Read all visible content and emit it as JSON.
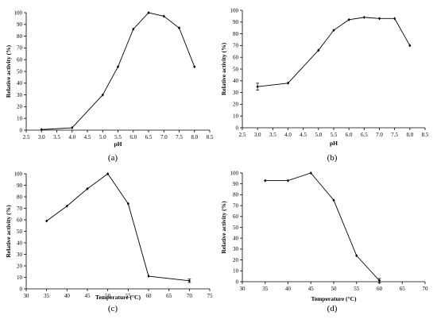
{
  "chart_data": [
    {
      "type": "line",
      "panel_label": "(a)",
      "xlabel": "pH",
      "ylabel": "Relative activity (%)",
      "xlim": [
        2.5,
        8.5
      ],
      "ylim": [
        0,
        100
      ],
      "xticks": [
        "2.5",
        "3.0",
        "3.5",
        "4.0",
        "4.5",
        "5.0",
        "5.5",
        "6.0",
        "6.5",
        "7.0",
        "7.5",
        "8.0",
        "8.5"
      ],
      "yticks": [
        "0",
        "10",
        "20",
        "30",
        "40",
        "50",
        "60",
        "70",
        "80",
        "90",
        "100"
      ],
      "series": [
        {
          "x": [
            3.0,
            4.0,
            5.0,
            5.5,
            6.0,
            6.5,
            7.0,
            7.5,
            8.0
          ],
          "y": [
            0.5,
            2,
            30,
            54,
            86,
            100,
            97,
            87,
            54
          ],
          "err": [
            0,
            0,
            0,
            0,
            0,
            0,
            0,
            0,
            0
          ]
        }
      ]
    },
    {
      "type": "line",
      "panel_label": "(b)",
      "xlabel": "pH",
      "ylabel": "Relative activity (%)",
      "xlim": [
        2.5,
        8.5
      ],
      "ylim": [
        0,
        100
      ],
      "xticks": [
        "2.5",
        "3.0",
        "3.5",
        "4.0",
        "4.5",
        "5.0",
        "5.5",
        "6.0",
        "6.5",
        "7.0",
        "7.5",
        "8.0",
        "8.5"
      ],
      "yticks": [
        "0",
        "10",
        "20",
        "30",
        "40",
        "50",
        "60",
        "70",
        "80",
        "90",
        "100"
      ],
      "series": [
        {
          "x": [
            3.0,
            4.0,
            5.0,
            5.5,
            6.0,
            6.5,
            7.0,
            7.5,
            8.0
          ],
          "y": [
            35,
            38,
            66,
            83,
            92,
            94,
            93,
            93,
            70
          ],
          "err": [
            3,
            0,
            0,
            0,
            0,
            0,
            0,
            0,
            0
          ]
        }
      ]
    },
    {
      "type": "line",
      "panel_label": "(c)",
      "xlabel": "Temperature (°C)",
      "ylabel": "Relative activity (%)",
      "xlim": [
        30,
        75
      ],
      "ylim": [
        0,
        100
      ],
      "xticks": [
        "30",
        "35",
        "40",
        "45",
        "50",
        "55",
        "60",
        "65",
        "70",
        "75"
      ],
      "yticks": [
        "0",
        "10",
        "20",
        "30",
        "40",
        "50",
        "60",
        "70",
        "80",
        "90",
        "100"
      ],
      "series": [
        {
          "x": [
            35,
            40,
            45,
            50,
            55,
            60,
            70
          ],
          "y": [
            59,
            72,
            87,
            100,
            74,
            11,
            7
          ],
          "err": [
            0,
            0,
            0,
            0,
            0,
            0,
            1.5
          ]
        }
      ]
    },
    {
      "type": "line",
      "panel_label": "(d)",
      "xlabel": "Temperature (°C)",
      "ylabel": "Relative activity (%)",
      "xlim": [
        30,
        70
      ],
      "ylim": [
        0,
        100
      ],
      "xticks": [
        "30",
        "35",
        "40",
        "45",
        "50",
        "55",
        "60",
        "65",
        "70"
      ],
      "yticks": [
        "0",
        "10",
        "20",
        "30",
        "40",
        "50",
        "60",
        "70",
        "80",
        "90",
        "100"
      ],
      "series": [
        {
          "x": [
            35,
            40,
            45,
            50,
            55,
            60
          ],
          "y": [
            93,
            93,
            100,
            75,
            24,
            1
          ],
          "err": [
            0,
            0,
            0,
            0,
            0,
            2
          ]
        }
      ]
    }
  ]
}
